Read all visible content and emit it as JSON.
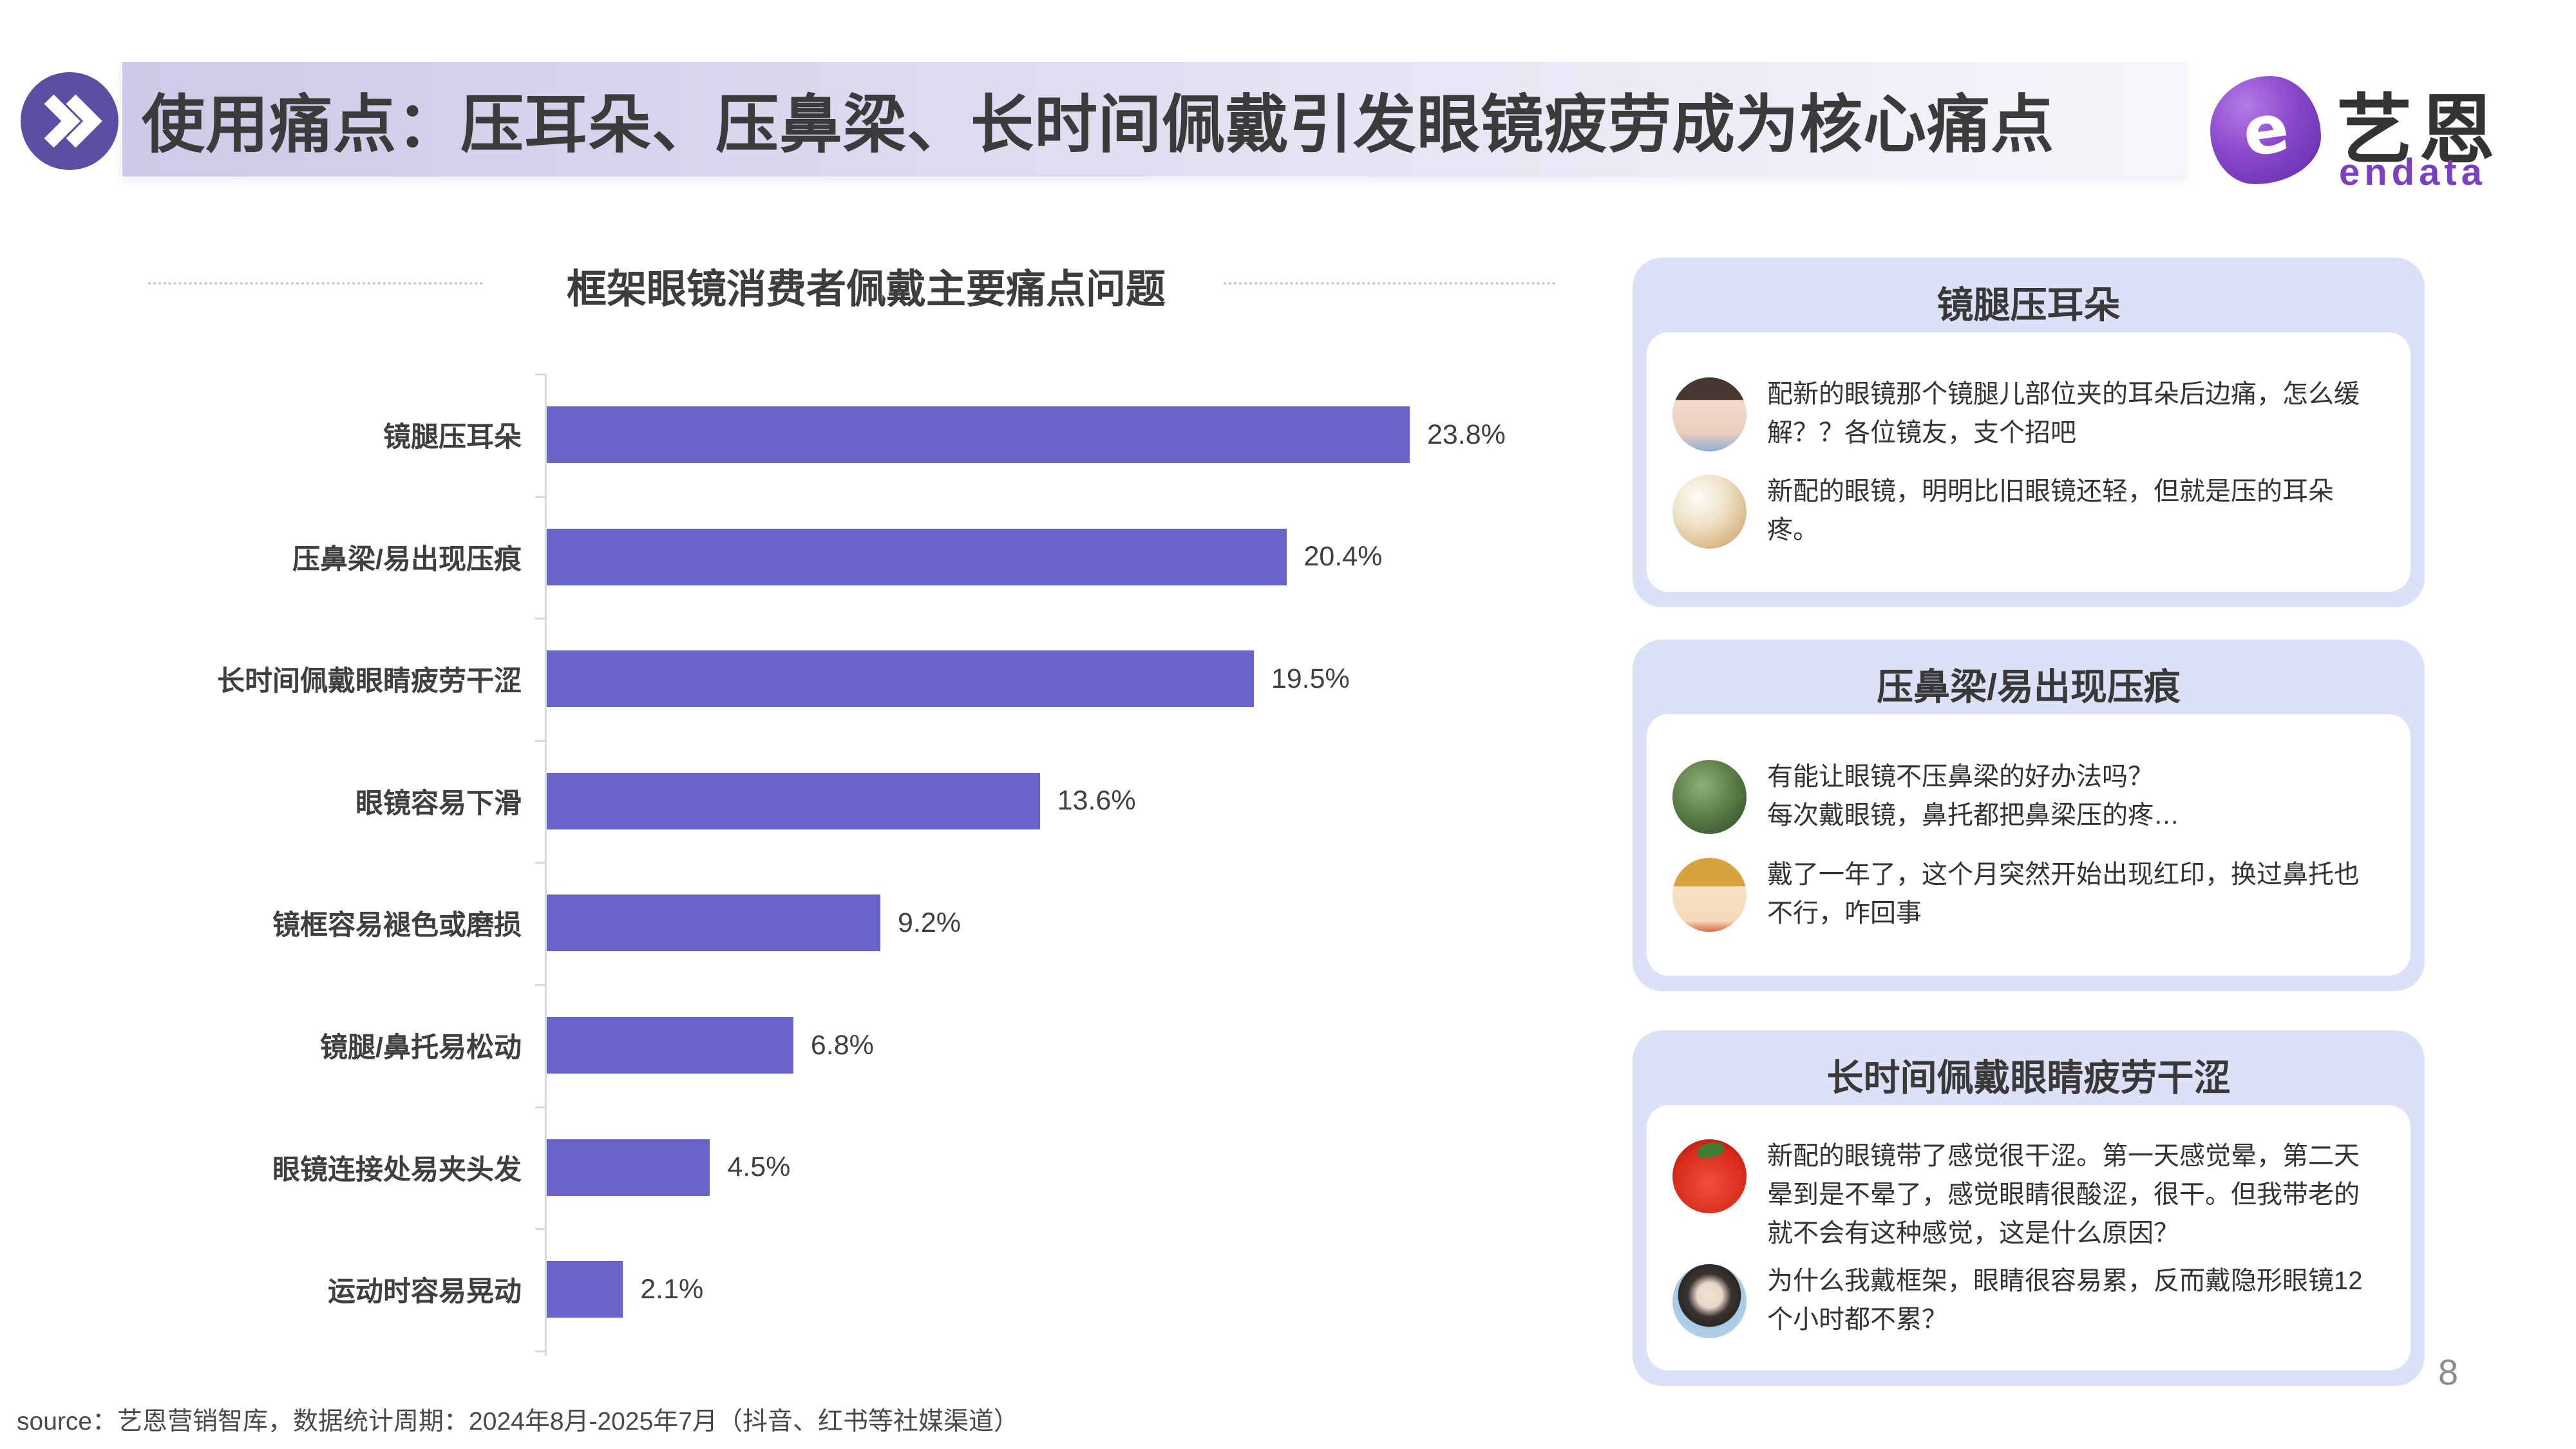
{
  "header": {
    "title": "使用痛点：压耳朵、压鼻梁、长时间佩戴引发眼镜疲劳成为核心痛点"
  },
  "logo": {
    "symbol": "e",
    "name_cn": "艺恩",
    "name_en": "endata"
  },
  "colors": {
    "bar": "#6964c9",
    "accent_purple": "#5b4fa5",
    "card_background": "#dce1f7",
    "banner_left": "#d0c9e7"
  },
  "chart_data": {
    "type": "bar",
    "orientation": "horizontal",
    "title": "框架眼镜消费者佩戴主要痛点问题",
    "categories": [
      "镜腿压耳朵",
      "压鼻梁/易出现压痕",
      "长时间佩戴眼睛疲劳干涩",
      "眼镜容易下滑",
      "镜框容易褪色或磨损",
      "镜腿/鼻托易松动",
      "眼镜连接处易夹头发",
      "运动时容易晃动"
    ],
    "values": [
      23.8,
      20.4,
      19.5,
      13.6,
      9.2,
      6.8,
      4.5,
      2.1
    ],
    "value_labels": [
      "23.8%",
      "20.4%",
      "19.5%",
      "13.6%",
      "9.2%",
      "6.8%",
      "4.5%",
      "2.1%"
    ],
    "unit": "%",
    "xlim": [
      0,
      25
    ],
    "xlabel": "",
    "ylabel": "",
    "grid": false,
    "legend": false,
    "bar_color": "#6964c9"
  },
  "cards": [
    {
      "title": "镜腿压耳朵",
      "comments": [
        {
          "avatar": "child-photo",
          "text": "配新的眼镜那个镜腿儿部位夹的耳朵后边痛，怎么缓解？？各位镜友，支个招吧"
        },
        {
          "avatar": "puppy-photo",
          "text": "新配的眼镜，明明比旧眼镜还轻，但就是压的耳朵疼。"
        }
      ]
    },
    {
      "title": "压鼻梁/易出现压痕",
      "comments": [
        {
          "avatar": "forest-photo",
          "text": "有能让眼镜不压鼻梁的好办法吗？\n每次戴眼镜，鼻托都把鼻梁压的疼…"
        },
        {
          "avatar": "cartoon-boy",
          "text": "戴了一年了，这个月突然开始出现红印，换过鼻托也不行，咋回事"
        }
      ]
    },
    {
      "title": "长时间佩戴眼睛疲劳干涩",
      "comments": [
        {
          "avatar": "tomato-cartoon",
          "text": "新配的眼镜带了感觉很干涩。第一天感觉晕，第二天晕到是不晕了，感觉眼睛很酸涩，很干。但我带老的就不会有这种感觉，这是什么原因？"
        },
        {
          "avatar": "hanfu-woman",
          "text": "为什么我戴框架，眼睛很容易累，反而戴隐形眼镜12个小时都不累？"
        }
      ]
    }
  ],
  "footer": {
    "source": "source：艺恩营销智库，数据统计周期：2024年8月-2025年7月（抖音、红书等社媒渠道）",
    "page_number": "8"
  }
}
